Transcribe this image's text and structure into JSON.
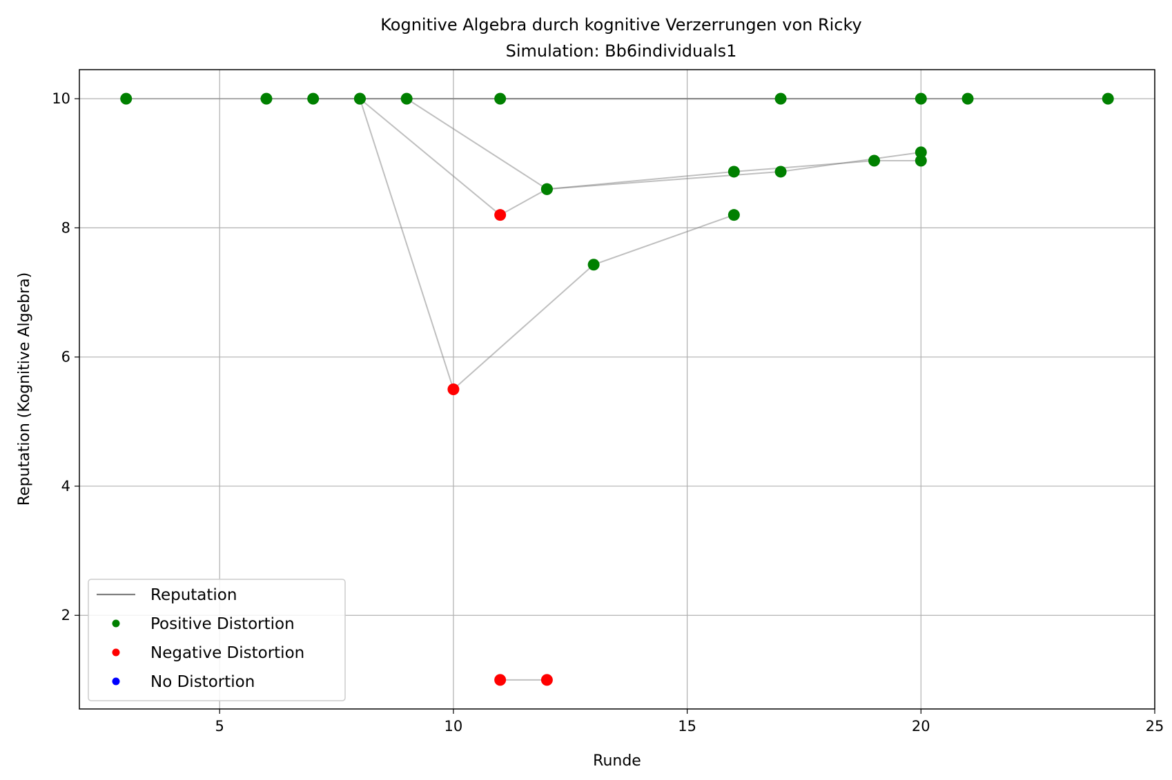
{
  "chart_data": {
    "type": "scatter",
    "title": "Kognitive Algebra durch kognitive Verzerrungen von Ricky",
    "subtitle": "Simulation: Bb6individuals1",
    "xlabel": "Runde",
    "ylabel": "Reputation (Kognitive Algebra)",
    "xlim": [
      2,
      25
    ],
    "ylim": [
      0.55,
      10.45
    ],
    "xticks": [
      5,
      10,
      15,
      20,
      25
    ],
    "yticks": [
      2,
      4,
      6,
      8,
      10
    ],
    "grid": true,
    "legend_position": "lower-left",
    "legend": [
      {
        "label": "Reputation",
        "kind": "line",
        "color": "#808080"
      },
      {
        "label": "Positive Distortion",
        "kind": "marker",
        "color": "#008000"
      },
      {
        "label": "Negative Distortion",
        "kind": "marker",
        "color": "#ff0000"
      },
      {
        "label": "No Distortion",
        "kind": "marker",
        "color": "#0000ff"
      }
    ],
    "colors": {
      "positive": "#008000",
      "negative": "#ff0000",
      "none": "#0000ff",
      "line": "#808080"
    },
    "series": [
      {
        "points": [
          [
            3,
            10,
            "positive"
          ],
          [
            24,
            10,
            "positive"
          ]
        ]
      },
      {
        "points": [
          [
            6,
            10,
            "positive"
          ],
          [
            21,
            10,
            "positive"
          ]
        ]
      },
      {
        "points": [
          [
            7,
            10,
            "positive"
          ],
          [
            20,
            10,
            "positive"
          ]
        ]
      },
      {
        "points": [
          [
            8,
            10,
            "positive"
          ],
          [
            11,
            8.2,
            "negative"
          ],
          [
            12,
            8.6,
            "positive"
          ],
          [
            17,
            8.87,
            "positive"
          ],
          [
            20,
            9.17,
            "positive"
          ]
        ]
      },
      {
        "points": [
          [
            8,
            10,
            "positive"
          ],
          [
            10,
            5.5,
            "negative"
          ],
          [
            13,
            7.43,
            "positive"
          ],
          [
            16,
            8.2,
            "positive"
          ]
        ]
      },
      {
        "points": [
          [
            9,
            10,
            "positive"
          ],
          [
            12,
            8.6,
            "positive"
          ],
          [
            16,
            8.87,
            "positive"
          ],
          [
            19,
            9.04,
            "positive"
          ],
          [
            20,
            9.04,
            "positive"
          ]
        ]
      },
      {
        "points": [
          [
            11,
            10,
            "positive"
          ],
          [
            17,
            10,
            "positive"
          ]
        ]
      },
      {
        "points": [
          [
            11,
            1,
            "negative"
          ],
          [
            12,
            1,
            "negative"
          ]
        ]
      }
    ]
  }
}
